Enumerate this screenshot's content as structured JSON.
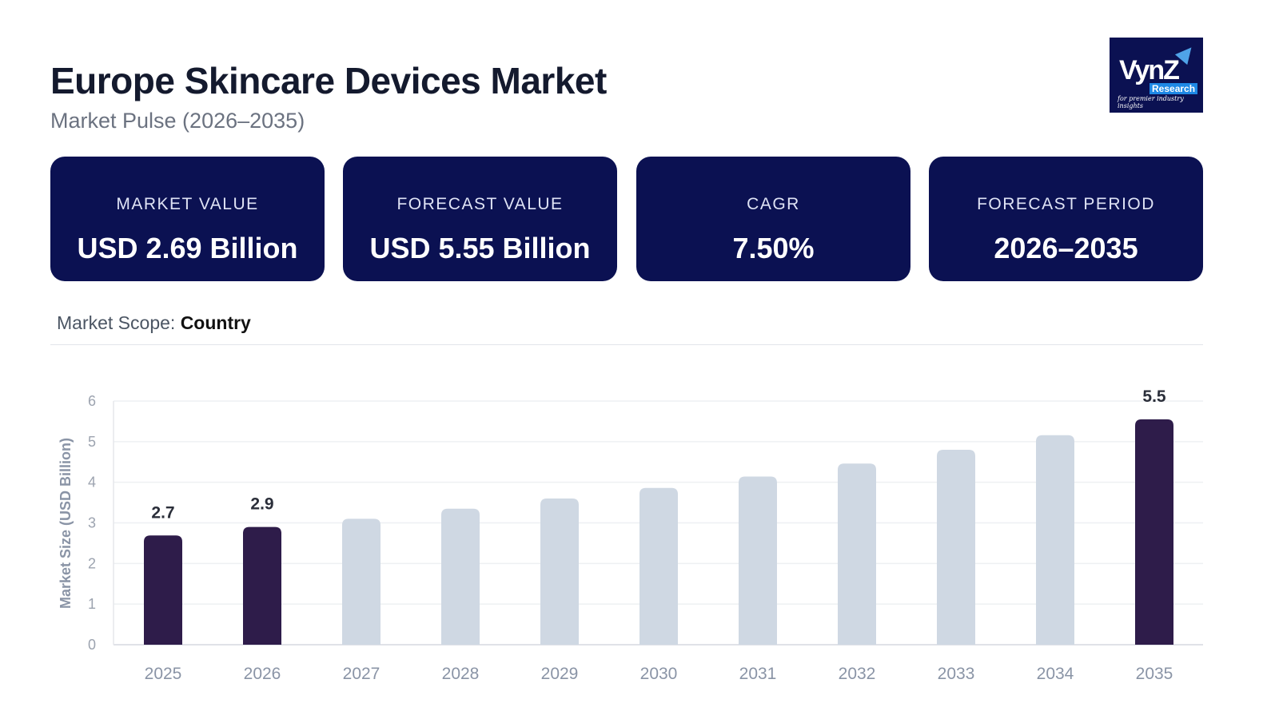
{
  "header": {
    "title": "Europe Skincare Devices Market",
    "subtitle": "Market Pulse (2026–2035)"
  },
  "logo": {
    "text": "VynZ",
    "sub": "Research",
    "tagline": "for premier industry insights"
  },
  "cards": [
    {
      "label": "MARKET VALUE",
      "value": "USD 2.69 Billion"
    },
    {
      "label": "FORECAST VALUE",
      "value": "USD 5.55 Billion"
    },
    {
      "label": "CAGR",
      "value": "7.50%"
    },
    {
      "label": "FORECAST PERIOD",
      "value": "2026–2035"
    }
  ],
  "scope": {
    "label": "Market Scope:",
    "value": "Country"
  },
  "colors": {
    "card_bg": "#0b1152",
    "highlight_bar": "#2e1c4a",
    "bar": "#cfd8e3"
  },
  "chart_data": {
    "type": "bar",
    "categories": [
      "2025",
      "2026",
      "2027",
      "2028",
      "2029",
      "2030",
      "2031",
      "2032",
      "2033",
      "2034",
      "2035"
    ],
    "values": [
      2.69,
      2.9,
      3.1,
      3.35,
      3.6,
      3.86,
      4.14,
      4.46,
      4.8,
      5.16,
      5.55
    ],
    "highlighted": [
      "2025",
      "2026",
      "2035"
    ],
    "data_labels": {
      "2025": "2.7",
      "2026": "2.9",
      "2035": "5.5"
    },
    "ylabel": "Market Size (USD Billion)",
    "ylim": [
      0,
      6
    ],
    "yticks": [
      "0",
      "1",
      "2",
      "3",
      "4",
      "5",
      "6"
    ],
    "grid": true
  }
}
